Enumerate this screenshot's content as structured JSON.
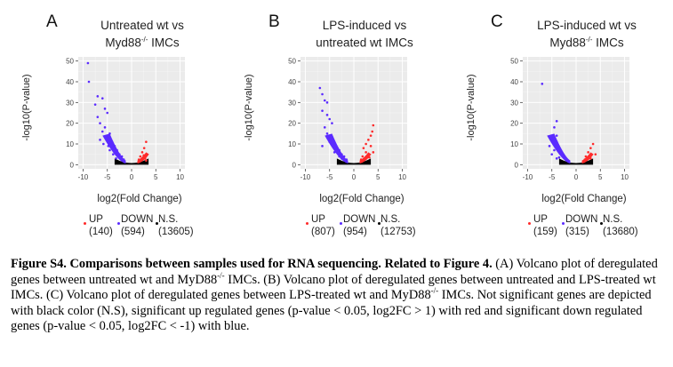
{
  "panels": [
    {
      "letter": "A",
      "title_line1": "Untreated wt vs",
      "title_line2": "Myd88",
      "title_sup": "-/-",
      "title_line2_tail": " IMCs"
    },
    {
      "letter": "B",
      "title_line1": "LPS-induced vs",
      "title_line2": "untreated wt IMCs",
      "title_sup": "",
      "title_line2_tail": ""
    },
    {
      "letter": "C",
      "title_line1": "LPS-induced wt vs",
      "title_line2": "Myd88",
      "title_sup": "-/-",
      "title_line2_tail": " IMCs"
    }
  ],
  "axis": {
    "xlabel": "log2(Fold Change)",
    "ylabel": "-log10(P-value)",
    "xticks": [
      "-10",
      "-5",
      "0",
      "5",
      "10"
    ],
    "yticks": [
      "0",
      "10",
      "20",
      "30",
      "40",
      "50"
    ]
  },
  "legend": {
    "up_label": "UP",
    "down_label": "DOWN",
    "ns_label": "N.S.",
    "up_color": "#ff2a2a",
    "down_color": "#5b2bff",
    "ns_color": "#000000"
  },
  "chart_data": [
    {
      "type": "scatter",
      "panel": "A",
      "xlabel": "log2(Fold Change)",
      "ylabel": "-log10(P-value)",
      "xlim": [
        -11,
        11
      ],
      "ylim": [
        -2,
        52
      ],
      "counts": {
        "up": "(140)",
        "down": "(594)",
        "ns": "(13605)"
      },
      "down_points": [
        [
          -9,
          49
        ],
        [
          -8.8,
          40
        ],
        [
          -7,
          33
        ],
        [
          -6,
          32
        ],
        [
          -7.5,
          29
        ],
        [
          -5.5,
          27
        ],
        [
          -5,
          25
        ],
        [
          -7,
          23
        ],
        [
          -6.5,
          20
        ],
        [
          -5.5,
          18
        ],
        [
          -6,
          16
        ],
        [
          -4.5,
          15
        ],
        [
          -5,
          13
        ],
        [
          -4,
          11
        ],
        [
          -3.5,
          9
        ],
        [
          -3,
          7
        ],
        [
          -2.5,
          5
        ],
        [
          -2,
          4
        ],
        [
          -1.6,
          2.5
        ],
        [
          -4.5,
          7
        ],
        [
          -3.8,
          5
        ],
        [
          -3.2,
          3
        ],
        [
          -6.5,
          12
        ],
        [
          -5.8,
          10
        ],
        [
          -4.8,
          9
        ]
      ],
      "up_points": [
        [
          3,
          11
        ],
        [
          2.6,
          8
        ],
        [
          2.2,
          6
        ],
        [
          3.2,
          5
        ],
        [
          1.8,
          4
        ],
        [
          2.8,
          3
        ],
        [
          1.5,
          2.5
        ],
        [
          2,
          2
        ],
        [
          3,
          2
        ],
        [
          2.5,
          4.5
        ]
      ],
      "ns_x": [
        -3.5,
        3.5
      ]
    },
    {
      "type": "scatter",
      "panel": "B",
      "xlabel": "log2(Fold Change)",
      "ylabel": "-log10(P-value)",
      "xlim": [
        -11,
        11
      ],
      "ylim": [
        -2,
        52
      ],
      "counts": {
        "up": "(807)",
        "down": "(954)",
        "ns": "(12753)"
      },
      "down_points": [
        [
          -7,
          37
        ],
        [
          -6.5,
          34
        ],
        [
          -6,
          31
        ],
        [
          -5.5,
          30
        ],
        [
          -6.5,
          26
        ],
        [
          -5.5,
          24
        ],
        [
          -5,
          22
        ],
        [
          -4.5,
          20
        ],
        [
          -6,
          18
        ],
        [
          -5.5,
          15
        ],
        [
          -4.5,
          13
        ],
        [
          -5,
          11
        ],
        [
          -4,
          10
        ],
        [
          -3.5,
          8
        ],
        [
          -3,
          7
        ],
        [
          -2.5,
          5
        ],
        [
          -2,
          4
        ],
        [
          -1.5,
          2.5
        ],
        [
          -6.5,
          9
        ],
        [
          -4,
          6
        ],
        [
          -3,
          4
        ],
        [
          -2.5,
          3
        ]
      ],
      "up_points": [
        [
          4,
          19
        ],
        [
          3.8,
          16
        ],
        [
          3.5,
          14
        ],
        [
          3,
          12
        ],
        [
          2.5,
          10
        ],
        [
          3.5,
          9
        ],
        [
          2,
          8
        ],
        [
          2.5,
          6
        ],
        [
          3,
          5
        ],
        [
          1.8,
          4
        ],
        [
          4,
          6
        ],
        [
          1.5,
          2.5
        ],
        [
          2.2,
          3
        ],
        [
          3.2,
          3.5
        ]
      ],
      "ns_x": [
        -3.5,
        3.5
      ]
    },
    {
      "type": "scatter",
      "panel": "C",
      "xlabel": "log2(Fold Change)",
      "ylabel": "-log10(P-value)",
      "xlim": [
        -11,
        11
      ],
      "ylim": [
        -2,
        52
      ],
      "counts": {
        "up": "(159)",
        "down": "(315)",
        "ns": "(13680)"
      },
      "down_points": [
        [
          -7,
          39
        ],
        [
          -4,
          21
        ],
        [
          -4.5,
          18
        ],
        [
          -4,
          14
        ],
        [
          -5,
          13
        ],
        [
          -4,
          11
        ],
        [
          -5.5,
          9
        ],
        [
          -3.5,
          8
        ],
        [
          -4.5,
          7
        ],
        [
          -3,
          6
        ],
        [
          -5,
          5
        ],
        [
          -2.5,
          4
        ],
        [
          -3.5,
          3.5
        ],
        [
          -2,
          2.5
        ],
        [
          -4,
          3
        ]
      ],
      "up_points": [
        [
          3.5,
          10
        ],
        [
          3,
          8
        ],
        [
          2.5,
          6
        ],
        [
          3.2,
          5
        ],
        [
          2,
          4
        ],
        [
          4,
          5
        ],
        [
          1.8,
          2.5
        ],
        [
          2.5,
          3
        ],
        [
          3,
          3
        ]
      ],
      "ns_x": [
        -3.5,
        3.5
      ]
    }
  ],
  "caption": {
    "bold1": "Figure S4. Comparisons between samples used for RNA sequencing",
    "plain1": ". ",
    "bold2": "Related to Figure 4.",
    "t1": " (A) Volcano plot of deregulated genes between untreated wt and MyD88",
    "sup1": "-/-",
    "t2": " IMCs. (B) Volcano plot of deregulated genes between untreated and LPS-treated wt IMCs. (C) Volcano plot of deregulated genes between LPS-treated wt and MyD88",
    "sup2": "-/-",
    "t3": " IMCs. Not significant genes are depicted with black color (N.S), significant up regulated genes (p-value < 0.05, log2FC > 1) with red and significant down regulated genes (p-value < 0.05, log2FC < -1) with blue."
  }
}
